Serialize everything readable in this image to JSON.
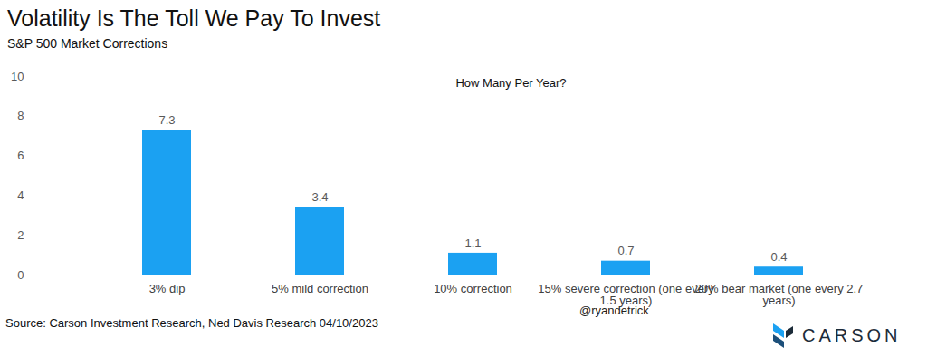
{
  "chart_data": {
    "type": "bar",
    "title": "Volatility Is The Toll We Pay To Invest",
    "subtitle": "S&P 500 Market Corrections",
    "annotations": [
      "How Many Per Year?"
    ],
    "categories": [
      "3% dip",
      "5% mild correction",
      "10% correction",
      "15% severe correction (one every 1.5 years)",
      "20% bear market (one every 2.7 years)"
    ],
    "values": [
      7.3,
      3.4,
      1.1,
      0.7,
      0.4
    ],
    "color": "#1ba1f2",
    "ylim": [
      0,
      10
    ],
    "yticks": [
      0,
      2,
      4,
      6,
      8,
      10
    ],
    "grid": false,
    "data_labels": true,
    "source": "Source: Carson Investment Research, Ned Davis Research 04/10/2023",
    "credit": "@ryandetrick",
    "brand": "CARSON"
  }
}
